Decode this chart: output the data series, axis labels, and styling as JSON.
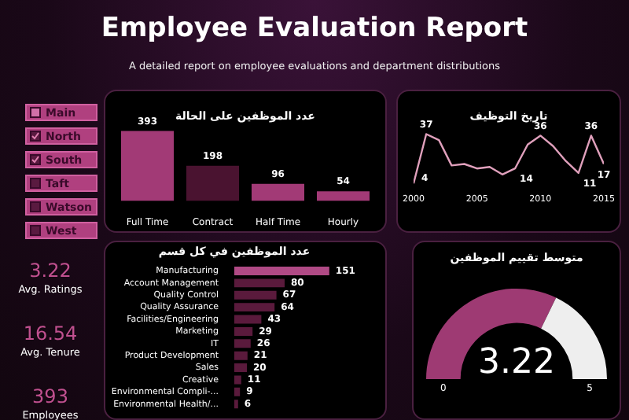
{
  "chart_data": [
    {
      "type": "other",
      "title": "Employee Evaluation Report",
      "subtitle": "A detailed report on employee evaluations and department distributions",
      "annotations": [
        "Main",
        "North",
        "South",
        "Taft",
        "Watson",
        "West",
        "3.22",
        "Avg. Ratings",
        "16.54",
        "Avg. Tenure",
        "393",
        "Employees"
      ]
    },
    {
      "type": "bar",
      "title": "عدد الموظفين على الحالة",
      "categories": [
        "Full Time",
        "Contract",
        "Half Time",
        "Hourly"
      ],
      "values": [
        393,
        198,
        96,
        54
      ],
      "colors": [
        "#a23a76",
        "#4a1330",
        "#a23a76",
        "#a23a76"
      ],
      "data_labels": true,
      "tick_labels": "x",
      "legend": false
    },
    {
      "type": "line",
      "title": "تاريخ التوظيف",
      "x": [
        2000,
        2001,
        2002,
        2003,
        2004,
        2005,
        2006,
        2007,
        2008,
        2009,
        2010,
        2011,
        2012,
        2013,
        2014,
        2015
      ],
      "xlim": [
        2000,
        2015
      ],
      "xticks": [
        2000,
        2005,
        2010,
        2015
      ],
      "series": [
        {
          "color": "#e0a0bc",
          "values": [
            4,
            37,
            33,
            16,
            17,
            14,
            15,
            10,
            14,
            30,
            36,
            29,
            19,
            11,
            36,
            17
          ],
          "value_labels": [
            "4",
            "37",
            null,
            null,
            null,
            null,
            null,
            null,
            "14",
            null,
            "36",
            null,
            null,
            "11",
            "36",
            "17"
          ]
        }
      ],
      "marker": "none",
      "tick_labels": "x",
      "legend": false
    },
    {
      "type": "bar",
      "orientation": "horizontal",
      "title": "عدد الموظفين في كل قسم",
      "categories": [
        "Manufacturing",
        "Account Management",
        "Quality Control",
        "Quality Assurance",
        "Facilities/Engineering",
        "Marketing",
        "IT",
        "Product Development",
        "Sales",
        "Creative",
        "Environmental Compli-...",
        "Environmental Health/..."
      ],
      "values": [
        151,
        80,
        67,
        64,
        43,
        29,
        26,
        21,
        20,
        11,
        9,
        6
      ],
      "colors": [
        "#b04a85",
        "#5a1a3c",
        "#5a1a3c",
        "#5a1a3c",
        "#5a1a3c",
        "#5a1a3c",
        "#5a1a3c",
        "#5a1a3c",
        "#5a1a3c",
        "#5a1a3c",
        "#5a1a3c",
        "#5a1a3c"
      ],
      "data_labels": true,
      "tick_labels": "y",
      "legend": false
    },
    {
      "type": "donut",
      "title": "متوسط تقييم الموظفين",
      "categories": [
        null,
        null
      ],
      "values": [
        64.4,
        35.6
      ],
      "colors": [
        "#9e3a73",
        "#eeeeee"
      ],
      "annotations": [
        "3.22",
        "0",
        "5"
      ],
      "legend": false
    }
  ]
}
